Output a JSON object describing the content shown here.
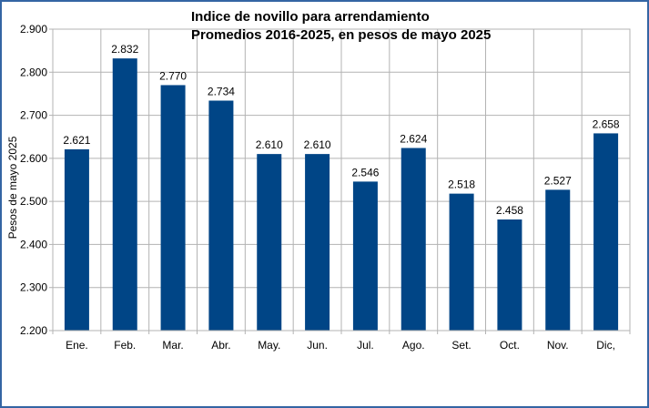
{
  "chart_data": {
    "type": "bar",
    "title": "Indice de novillo para arrendamiento",
    "subtitle": "Promedios 2016-2025, en pesos de mayo 2025",
    "xlabel": "",
    "ylabel": "Pesos de mayo 2025",
    "categories": [
      "Ene.",
      "Feb.",
      "Mar.",
      "Abr.",
      "May.",
      "Jun.",
      "Jul.",
      "Ago.",
      "Set.",
      "Oct.",
      "Nov.",
      "Dic,"
    ],
    "values": [
      2621,
      2832,
      2770,
      2734,
      2610,
      2610,
      2546,
      2624,
      2518,
      2458,
      2527,
      2658
    ],
    "value_labels": [
      "2.621",
      "2.832",
      "2.770",
      "2.734",
      "2.610",
      "2.610",
      "2.546",
      "2.624",
      "2.518",
      "2.458",
      "2.527",
      "2.658"
    ],
    "ylim": [
      2200,
      2900
    ],
    "yticks": [
      2200,
      2300,
      2400,
      2500,
      2600,
      2700,
      2800,
      2900
    ],
    "ytick_labels": [
      "2.200",
      "2.300",
      "2.400",
      "2.500",
      "2.600",
      "2.700",
      "2.800",
      "2.900"
    ],
    "grid": true,
    "legend": "none",
    "bar_color": "#004586",
    "grid_color": "#b3b3b3",
    "frame_color": "#3465a4"
  }
}
